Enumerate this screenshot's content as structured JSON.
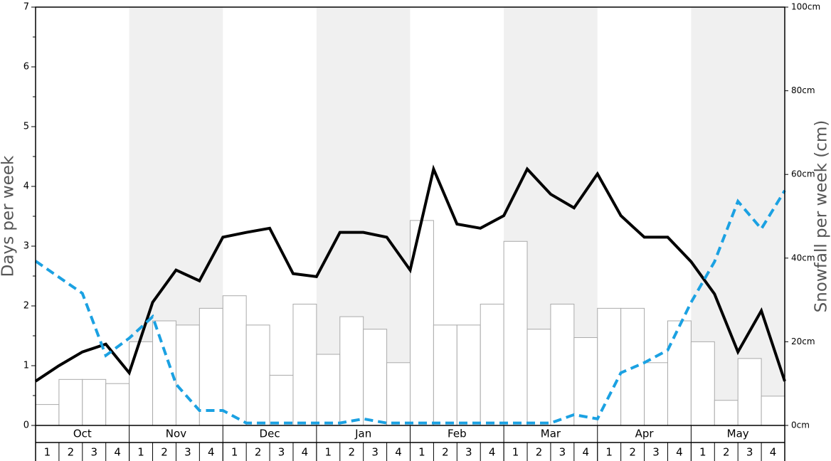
{
  "chart_data": {
    "type": "bar-line",
    "y_label": "Days per week",
    "y2_label": "Snowfall per week (cm)",
    "months": [
      "Oct",
      "Nov",
      "Dec",
      "Jan",
      "Feb",
      "Mar",
      "Apr",
      "May"
    ],
    "weeks": [
      "1",
      "2",
      "3",
      "4"
    ],
    "ylim": [
      0,
      7
    ],
    "yticks": [
      0,
      1,
      2,
      3,
      4,
      5,
      6,
      7
    ],
    "y2lim": [
      0,
      100
    ],
    "y2ticks": [
      {
        "value": 0,
        "label": "0cm"
      },
      {
        "value": 20,
        "label": "20cm"
      },
      {
        "value": 40,
        "label": "40cm"
      },
      {
        "value": 60,
        "label": "60cm"
      },
      {
        "value": 80,
        "label": "80cm"
      },
      {
        "value": 100,
        "label": "100cm"
      }
    ],
    "shade_color": "#f0f0f0",
    "series": [
      {
        "type": "bar",
        "axis": "y2",
        "color": "#ffffff",
        "values": [
          5,
          11,
          11,
          10,
          20,
          25,
          24,
          28,
          31,
          24,
          12,
          29,
          17,
          26,
          23,
          15,
          49,
          24,
          24,
          29,
          44,
          23,
          29,
          21,
          28,
          28,
          15,
          25,
          20,
          6,
          16,
          7
        ]
      },
      {
        "type": "line",
        "color": "#000000",
        "dashed": false,
        "values": [
          0.74,
          1.0,
          1.23,
          1.36,
          0.88,
          2.06,
          2.6,
          2.42,
          3.15,
          3.23,
          3.3,
          2.54,
          2.49,
          3.23,
          3.23,
          3.15,
          2.6,
          4.29,
          3.37,
          3.3,
          3.51,
          4.29,
          3.87,
          3.64,
          4.21,
          3.51,
          3.15,
          3.15,
          2.74,
          2.2,
          1.23,
          1.92,
          0.74
        ]
      },
      {
        "type": "line",
        "color": "#1ba1e2",
        "dashed": true,
        "values": [
          2.75,
          2.48,
          2.21,
          1.17,
          1.46,
          1.82,
          0.69,
          0.25,
          0.25,
          0.04,
          0.04,
          0.04,
          0.04,
          0.04,
          0.11,
          0.04,
          0.04,
          0.04,
          0.04,
          0.04,
          0.04,
          0.04,
          0.04,
          0.18,
          0.11,
          0.88,
          1.05,
          1.26,
          2.06,
          2.74,
          3.75,
          3.29,
          3.93
        ]
      }
    ]
  }
}
